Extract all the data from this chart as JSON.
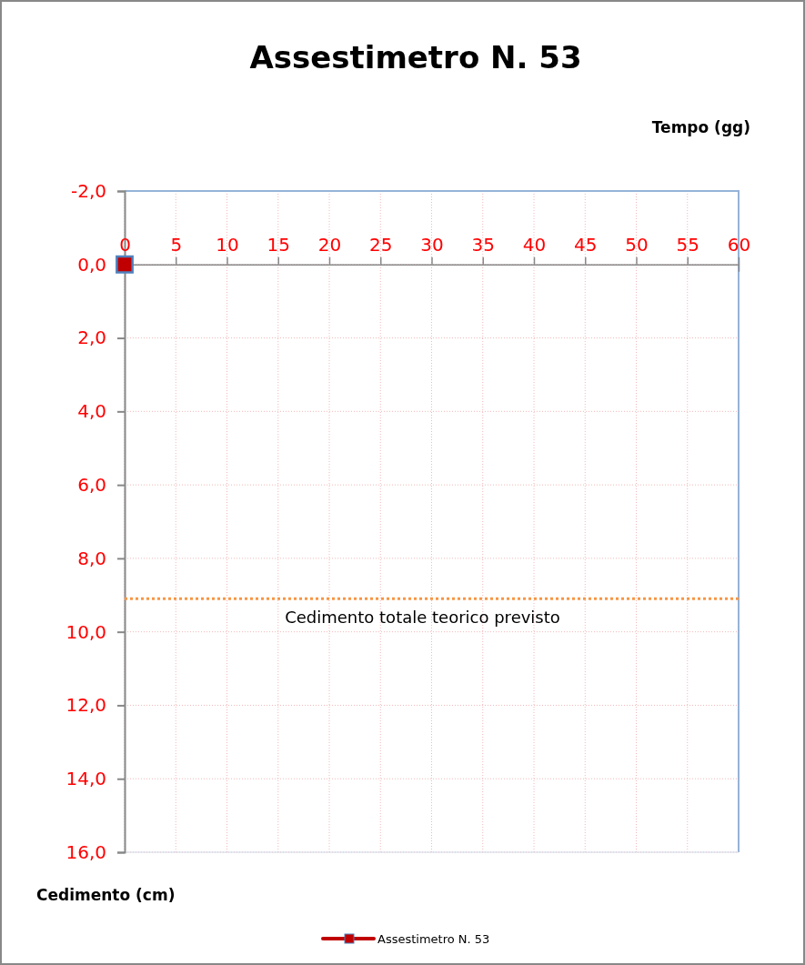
{
  "chart_data": {
    "type": "line",
    "title": "Assestimetro N. 53",
    "xlabel": "Tempo (gg)",
    "ylabel": "Cedimento (cm)",
    "xlim": [
      0,
      60
    ],
    "xticks": [
      0,
      5,
      10,
      15,
      20,
      25,
      30,
      35,
      40,
      45,
      50,
      55,
      60
    ],
    "ylim": [
      16,
      -2
    ],
    "yticks": [
      {
        "value": -2,
        "label": "-2,0"
      },
      {
        "value": 0,
        "label": "0,0"
      },
      {
        "value": 2,
        "label": "2,0"
      },
      {
        "value": 4,
        "label": "4,0"
      },
      {
        "value": 6,
        "label": "6,0"
      },
      {
        "value": 8,
        "label": "8,0"
      },
      {
        "value": 10,
        "label": "10,0"
      },
      {
        "value": 12,
        "label": "12,0"
      },
      {
        "value": 14,
        "label": "14,0"
      },
      {
        "value": 16,
        "label": "16,0"
      }
    ],
    "series": [
      {
        "name": "Assestimetro N. 53",
        "color": "#c00000",
        "x": [
          0
        ],
        "values": [
          0
        ]
      }
    ],
    "marker": "square",
    "grid": true,
    "legend": "bottom",
    "ref_lines": [
      {
        "axis": "y",
        "value": 9.1,
        "label": "Cedimento totale teorico previsto",
        "color": "#f79646",
        "line_style": "dotted"
      }
    ]
  }
}
